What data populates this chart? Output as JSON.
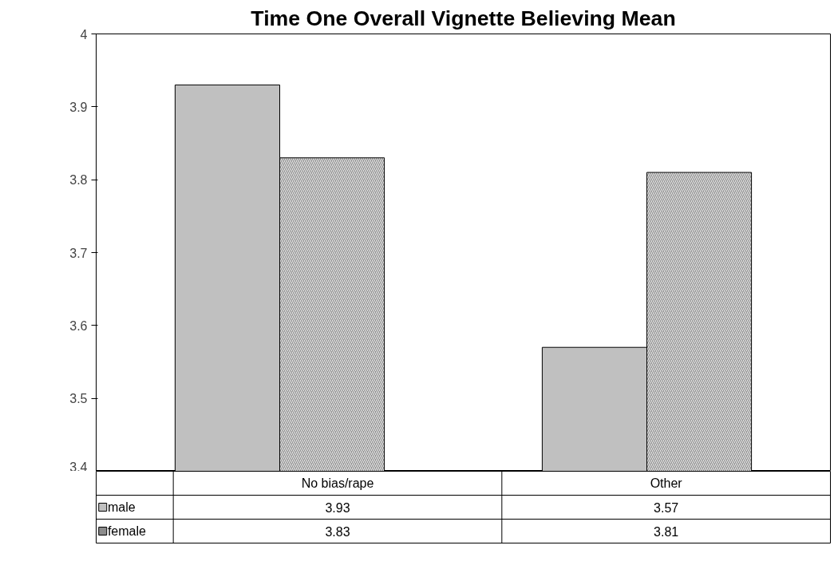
{
  "chart_data": {
    "type": "bar",
    "title": "Time One Overall Vignette Believing Mean",
    "categories": [
      "No bias/rape",
      "Other"
    ],
    "series": [
      {
        "name": "male",
        "color": "#c0c0c0",
        "values": [
          3.93,
          3.57
        ]
      },
      {
        "name": "female",
        "color": "#8c8c8c",
        "values": [
          3.83,
          3.81
        ]
      }
    ],
    "ylim": [
      3.4,
      4
    ],
    "yticks": [
      3.4,
      3.5,
      3.6,
      3.7,
      3.8,
      3.9,
      4
    ],
    "grid": false,
    "legend": "bottom",
    "data_labels": true
  }
}
